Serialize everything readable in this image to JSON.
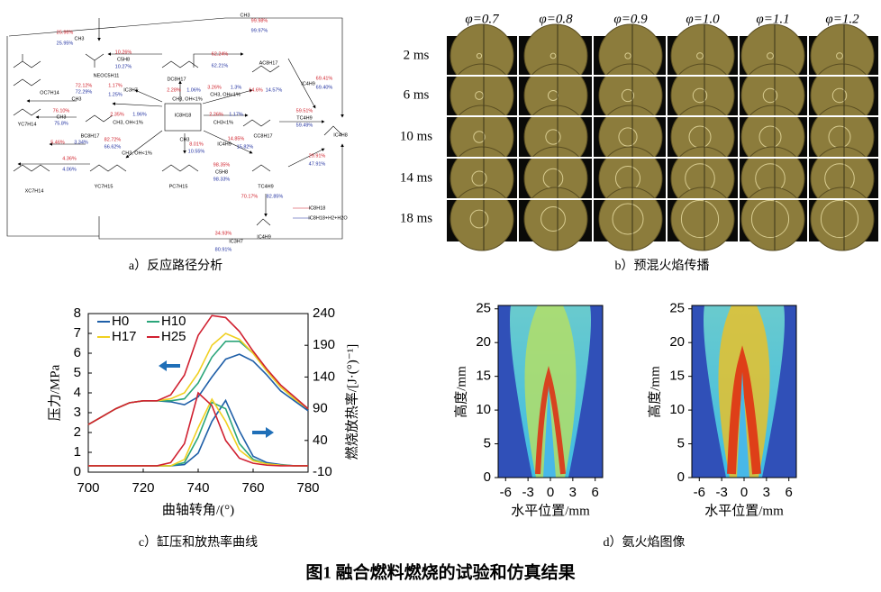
{
  "figure_title": "图1  融合燃料燃烧的试验和仿真结果",
  "panel_a": {
    "caption": "a）反应路径分析",
    "labels": [
      {
        "text": "CH3",
        "color": "#000"
      },
      {
        "text": "99.98%",
        "color": "#d0202a"
      },
      {
        "text": "99.97%",
        "color": "#2030a0"
      },
      {
        "text": "25.96%",
        "color": "#d0202a"
      },
      {
        "text": "CH3",
        "color": "#000"
      },
      {
        "text": "25.95%",
        "color": "#2030a0"
      },
      {
        "text": "10.26%",
        "color": "#d0202a"
      },
      {
        "text": "C5H8",
        "color": "#000"
      },
      {
        "text": "10.27%",
        "color": "#2030a0"
      },
      {
        "text": "NEOC5H11",
        "color": "#000"
      },
      {
        "text": "62.24%",
        "color": "#d0202a"
      },
      {
        "text": "62.21%",
        "color": "#2030a0"
      },
      {
        "text": "DC8H17",
        "color": "#000"
      },
      {
        "text": "AC8H17",
        "color": "#000"
      },
      {
        "text": "69.41%",
        "color": "#d0202a"
      },
      {
        "text": "IC4H9",
        "color": "#000"
      },
      {
        "text": "69.40%",
        "color": "#2030a0"
      },
      {
        "text": "OC7H14",
        "color": "#000"
      },
      {
        "text": "72.12%",
        "color": "#d0202a"
      },
      {
        "text": "72.29%",
        "color": "#2030a0"
      },
      {
        "text": "CH3",
        "color": "#000"
      },
      {
        "text": "1.17%",
        "color": "#d0202a"
      },
      {
        "text": "IC3H7",
        "color": "#000"
      },
      {
        "text": "1.25%",
        "color": "#2030a0"
      },
      {
        "text": "2.28%",
        "color": "#d0202a"
      },
      {
        "text": "1.06%",
        "color": "#2030a0"
      },
      {
        "text": "CH3, OH<1%",
        "color": "#000"
      },
      {
        "text": "3.26%",
        "color": "#d0202a"
      },
      {
        "text": "1.3%",
        "color": "#2030a0"
      },
      {
        "text": "CH3, OH<1%",
        "color": "#000"
      },
      {
        "text": "14.6%",
        "color": "#d0202a"
      },
      {
        "text": "14.57%",
        "color": "#2030a0"
      },
      {
        "text": "YC7H14",
        "color": "#000"
      },
      {
        "text": "76.10%",
        "color": "#d0202a"
      },
      {
        "text": "CH3",
        "color": "#000"
      },
      {
        "text": "75.8%",
        "color": "#2030a0"
      },
      {
        "text": "BC8H17",
        "color": "#000"
      },
      {
        "text": "2.35%",
        "color": "#d0202a"
      },
      {
        "text": "1.96%",
        "color": "#2030a0"
      },
      {
        "text": "CH3, OH<1%",
        "color": "#000"
      },
      {
        "text": "IC8H18",
        "color": "#000"
      },
      {
        "text": "2.26%",
        "color": "#d0202a"
      },
      {
        "text": "1.17%",
        "color": "#2030a0"
      },
      {
        "text": "CH3<1%",
        "color": "#000"
      },
      {
        "text": "CC8H17",
        "color": "#000"
      },
      {
        "text": "59.51%",
        "color": "#d0202a"
      },
      {
        "text": "TC4H9",
        "color": "#000"
      },
      {
        "text": "59.49%",
        "color": "#2030a0"
      },
      {
        "text": "IC4H8",
        "color": "#000"
      },
      {
        "text": "5.46%",
        "color": "#d0202a"
      },
      {
        "text": "3.34%",
        "color": "#2030a0"
      },
      {
        "text": "82.72%",
        "color": "#d0202a"
      },
      {
        "text": "66.62%",
        "color": "#2030a0"
      },
      {
        "text": "CH3, OH<1%",
        "color": "#000"
      },
      {
        "text": "CH3",
        "color": "#000"
      },
      {
        "text": "8.01%",
        "color": "#d0202a"
      },
      {
        "text": "10.55%",
        "color": "#2030a0"
      },
      {
        "text": "IC4H9",
        "color": "#000"
      },
      {
        "text": "14.85%",
        "color": "#d0202a"
      },
      {
        "text": "15.82%",
        "color": "#2030a0"
      },
      {
        "text": "4.36%",
        "color": "#d0202a"
      },
      {
        "text": "4.06%",
        "color": "#2030a0"
      },
      {
        "text": "XC7H14",
        "color": "#000"
      },
      {
        "text": "YC7H15",
        "color": "#000"
      },
      {
        "text": "PC7H15",
        "color": "#000"
      },
      {
        "text": "98.35%",
        "color": "#d0202a"
      },
      {
        "text": "C5H8",
        "color": "#000"
      },
      {
        "text": "98.33%",
        "color": "#2030a0"
      },
      {
        "text": "TC4H9",
        "color": "#000"
      },
      {
        "text": "29.91%",
        "color": "#d0202a"
      },
      {
        "text": "47.91%",
        "color": "#2030a0"
      },
      {
        "text": "70.17%",
        "color": "#d0202a"
      },
      {
        "text": "82.85%",
        "color": "#2030a0"
      },
      {
        "text": "IC8H18",
        "color": "#000"
      },
      {
        "text": "IC8H18+H2+H2O",
        "color": "#000"
      },
      {
        "text": "IC4H9",
        "color": "#000"
      },
      {
        "text": "34.93%",
        "color": "#d0202a"
      },
      {
        "text": "IC3H7",
        "color": "#000"
      },
      {
        "text": "80.91%",
        "color": "#2030a0"
      }
    ]
  },
  "panel_b": {
    "caption": "b）预混火焰传播",
    "phi": [
      "φ=0.7",
      "φ=0.8",
      "φ=0.9",
      "φ=1.0",
      "φ=1.1",
      "φ=1.2"
    ],
    "times": [
      "2 ms",
      "6 ms",
      "10 ms",
      "14 ms",
      "18 ms"
    ]
  },
  "chart_data": [
    {
      "type": "line",
      "caption": "c）缸压和放热率曲线",
      "xlabel": "曲轴转角/(°)",
      "ylabel": "压力/MPa",
      "y2label": "燃烧放热率/[J·(°)⁻¹]",
      "x": [
        700,
        705,
        710,
        715,
        720,
        725,
        730,
        735,
        740,
        745,
        750,
        755,
        760,
        765,
        770,
        775,
        780
      ],
      "xlim": [
        700,
        780
      ],
      "xticks": [
        700,
        720,
        740,
        760,
        780
      ],
      "ylim": [
        0,
        8
      ],
      "yticks": [
        0,
        1,
        2,
        3,
        4,
        5,
        6,
        7,
        8
      ],
      "y2lim": [
        -10,
        240
      ],
      "y2ticks": [
        -10,
        40,
        90,
        140,
        190,
        240
      ],
      "legend": "upper left",
      "series": [
        {
          "name": "H0",
          "color": "#1f5fa8",
          "values": [
            2.4,
            2.8,
            3.2,
            3.5,
            3.6,
            3.6,
            3.55,
            3.4,
            3.8,
            4.8,
            5.7,
            5.95,
            5.6,
            4.9,
            4.1,
            3.6,
            3.1
          ]
        },
        {
          "name": "H10",
          "color": "#2aa57a",
          "values": [
            2.4,
            2.8,
            3.2,
            3.5,
            3.6,
            3.6,
            3.6,
            3.7,
            4.5,
            5.8,
            6.6,
            6.6,
            6.0,
            5.1,
            4.3,
            3.7,
            3.2
          ]
        },
        {
          "name": "H17",
          "color": "#f0d020",
          "values": [
            2.4,
            2.8,
            3.2,
            3.5,
            3.6,
            3.6,
            3.7,
            4.0,
            5.0,
            6.4,
            7.0,
            6.7,
            6.0,
            5.1,
            4.3,
            3.7,
            3.2
          ]
        },
        {
          "name": "H25",
          "color": "#d02030",
          "values": [
            2.4,
            2.8,
            3.2,
            3.5,
            3.6,
            3.6,
            3.9,
            4.9,
            6.9,
            7.9,
            7.8,
            7.1,
            6.1,
            5.2,
            4.4,
            3.8,
            3.2
          ]
        },
        {
          "name": "H0",
          "color": "#1f5fa8",
          "axis": "y2",
          "values": [
            0,
            0,
            0,
            0,
            0,
            0,
            0,
            2,
            20,
            70,
            103,
            55,
            15,
            5,
            2,
            0,
            0
          ]
        },
        {
          "name": "H10",
          "color": "#2aa57a",
          "axis": "y2",
          "values": [
            0,
            0,
            0,
            0,
            0,
            0,
            0,
            5,
            45,
            100,
            90,
            35,
            10,
            3,
            1,
            0,
            0
          ]
        },
        {
          "name": "H17",
          "color": "#f0d020",
          "axis": "y2",
          "values": [
            0,
            0,
            0,
            0,
            0,
            0,
            0,
            10,
            60,
            105,
            70,
            25,
            8,
            3,
            1,
            0,
            0
          ]
        },
        {
          "name": "H25",
          "color": "#d02030",
          "axis": "y2",
          "values": [
            0,
            0,
            0,
            0,
            0,
            0,
            5,
            35,
            115,
            95,
            40,
            12,
            4,
            1,
            0,
            0,
            0
          ]
        }
      ]
    },
    {
      "type": "heatmap",
      "caption": "d）氨火焰图像",
      "xlabel": "水平位置/mm",
      "ylabel": "高度/mm",
      "xlim": [
        -7,
        7
      ],
      "xticks": [
        -6,
        -3,
        0,
        3,
        6
      ],
      "ylim": [
        0,
        25.5
      ],
      "yticks": [
        0,
        5,
        10,
        15,
        20,
        25
      ]
    },
    {
      "type": "heatmap",
      "xlabel": "水平位置/mm",
      "ylabel": "高度/mm",
      "xlim": [
        -7,
        7
      ],
      "xticks": [
        -6,
        -3,
        0,
        3,
        6
      ],
      "ylim": [
        0,
        25.5
      ],
      "yticks": [
        0,
        5,
        10,
        15,
        20,
        25
      ]
    }
  ]
}
